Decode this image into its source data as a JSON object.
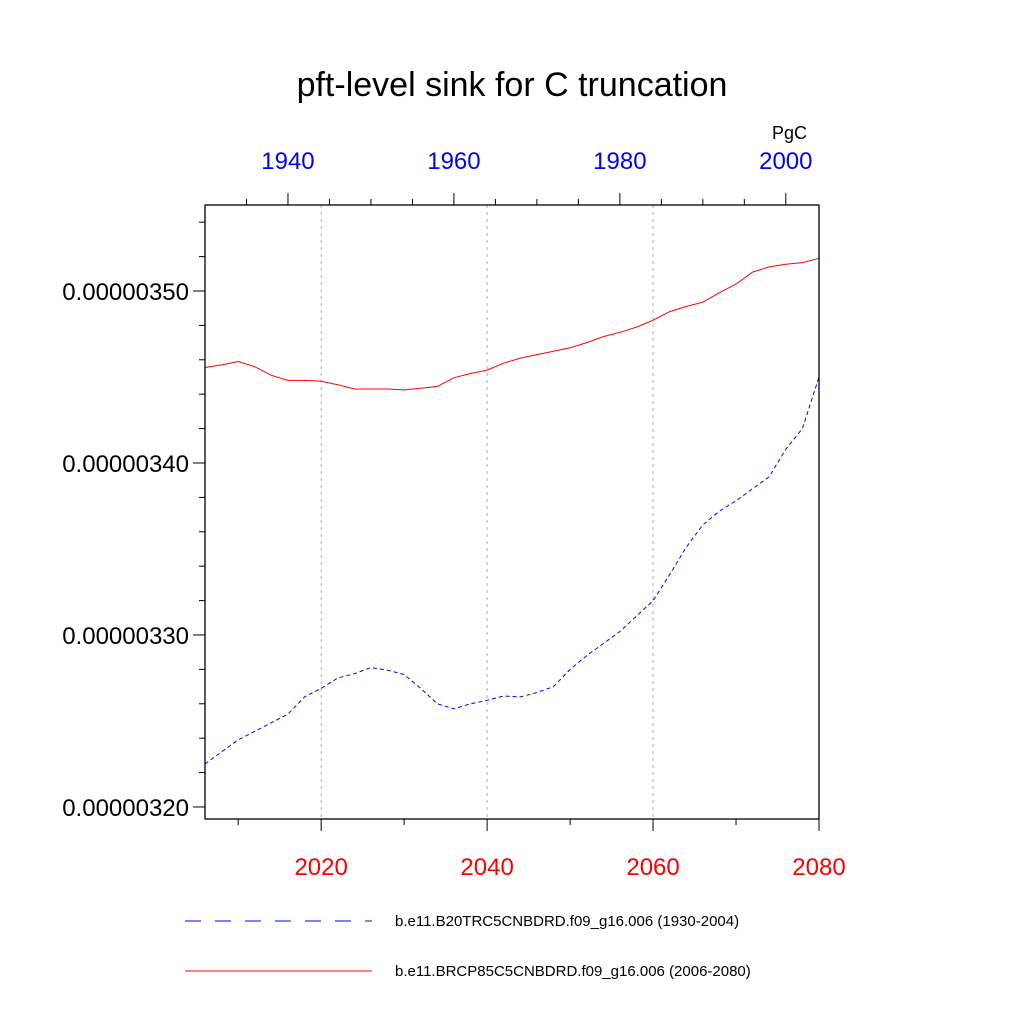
{
  "chart_data": {
    "type": "line",
    "title": "pft-level sink for C truncation",
    "units": "PgC",
    "ylabel": "",
    "xlabel": "",
    "ylim": [
      3.193e-06,
      3.55e-06
    ],
    "y_ticks": [
      3.2e-06,
      3.3e-06,
      3.4e-06,
      3.5e-06
    ],
    "y_tick_labels": [
      "0.00000320",
      "0.00000330",
      "0.00000340",
      "0.00000350"
    ],
    "x_bottom": {
      "range": [
        2006,
        2080
      ],
      "ticks": [
        2020,
        2040,
        2060,
        2080
      ],
      "tick_labels": [
        "2020",
        "2040",
        "2060",
        "2080"
      ],
      "color": "#ff0000"
    },
    "x_top": {
      "range": [
        1930,
        2004
      ],
      "ticks": [
        1940,
        1960,
        1980,
        2000
      ],
      "tick_labels": [
        "1940",
        "1960",
        "1980",
        "2000"
      ],
      "color": "#0000ff"
    },
    "grid": "vertical dashed at bottom-axis ticks",
    "legend_position": "bottom",
    "series": [
      {
        "name": "b.e11.B20TRC5CNBDRD.f09_g16.006 (1930-2004)",
        "axis": "top",
        "color": "#0000ff",
        "style": "dashed",
        "x": [
          1930,
          1932,
          1934,
          1936,
          1938,
          1940,
          1942,
          1944,
          1946,
          1948,
          1950,
          1952,
          1954,
          1956,
          1958,
          1960,
          1962,
          1964,
          1966,
          1968,
          1970,
          1972,
          1974,
          1976,
          1978,
          1980,
          1982,
          1984,
          1986,
          1988,
          1990,
          1992,
          1994,
          1996,
          1998,
          2000,
          2002,
          2004
        ],
        "y": [
          3.225e-06,
          3.232e-06,
          3.239e-06,
          3.244e-06,
          3.249e-06,
          3.254e-06,
          3.264e-06,
          3.269e-06,
          3.275e-06,
          3.2775e-06,
          3.281e-06,
          3.2795e-06,
          3.277e-06,
          3.269e-06,
          3.26e-06,
          3.257e-06,
          3.26e-06,
          3.262e-06,
          3.2645e-06,
          3.264e-06,
          3.2665e-06,
          3.27e-06,
          3.28e-06,
          3.288e-06,
          3.295e-06,
          3.302e-06,
          3.311e-06,
          3.32e-06,
          3.335e-06,
          3.351e-06,
          3.364e-06,
          3.372e-06,
          3.378e-06,
          3.385e-06,
          3.392e-06,
          3.408e-06,
          3.42e-06,
          3.45e-06
        ]
      },
      {
        "name": "b.e11.BRCP85C5CNBDRD.f09_g16.006 (2006-2080)",
        "axis": "bottom",
        "color": "#ff0000",
        "style": "solid",
        "x": [
          2006,
          2008,
          2010,
          2012,
          2014,
          2016,
          2018,
          2020,
          2022,
          2024,
          2026,
          2028,
          2030,
          2032,
          2034,
          2036,
          2038,
          2040,
          2042,
          2044,
          2046,
          2048,
          2050,
          2052,
          2054,
          2056,
          2058,
          2060,
          2062,
          2064,
          2066,
          2068,
          2070,
          2072,
          2074,
          2076,
          2078,
          2080
        ],
        "y": [
          3.4555e-06,
          3.457e-06,
          3.459e-06,
          3.456e-06,
          3.451e-06,
          3.448e-06,
          3.448e-06,
          3.4475e-06,
          3.4455e-06,
          3.443e-06,
          3.443e-06,
          3.443e-06,
          3.4425e-06,
          3.4435e-06,
          3.4445e-06,
          3.4495e-06,
          3.452e-06,
          3.454e-06,
          3.458e-06,
          3.461e-06,
          3.463e-06,
          3.465e-06,
          3.467e-06,
          3.47e-06,
          3.4735e-06,
          3.476e-06,
          3.479e-06,
          3.483e-06,
          3.488e-06,
          3.491e-06,
          3.4935e-06,
          3.499e-06,
          3.504e-06,
          3.511e-06,
          3.514e-06,
          3.5155e-06,
          3.5165e-06,
          3.519e-06
        ]
      }
    ]
  }
}
